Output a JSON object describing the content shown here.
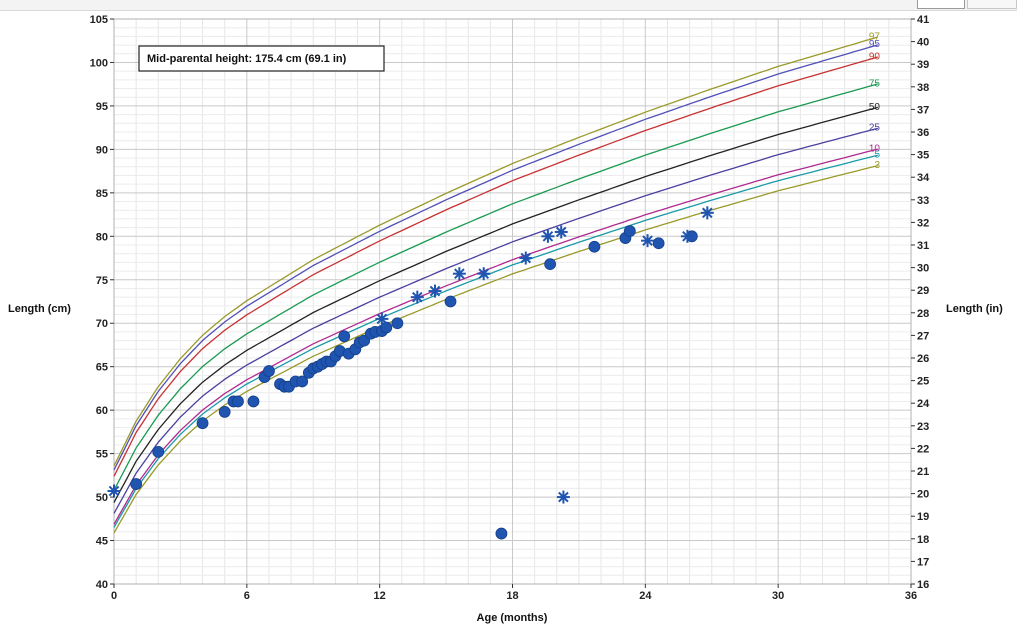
{
  "chart_data": {
    "type": "scatter",
    "note": "Mid-parental height: 175.4 cm (69.1 in)",
    "xlabel": "Age (months)",
    "ylabel_left": "Length (cm)",
    "ylabel_right": "Length (in)",
    "xlim": [
      0,
      36
    ],
    "ylim_cm": [
      40,
      105
    ],
    "ylim_in": [
      16,
      41
    ],
    "x_ticks": [
      "0",
      "6",
      "12",
      "18",
      "24",
      "30",
      "36"
    ],
    "y_ticks_cm": [
      "40",
      "45",
      "50",
      "55",
      "60",
      "65",
      "70",
      "75",
      "80",
      "85",
      "90",
      "95",
      "100",
      "105"
    ],
    "y_ticks_in": [
      "16",
      "17",
      "18",
      "19",
      "20",
      "21",
      "22",
      "23",
      "24",
      "25",
      "26",
      "27",
      "28",
      "29",
      "30",
      "31",
      "32",
      "33",
      "34",
      "35",
      "36",
      "37",
      "38",
      "39",
      "40",
      "41"
    ],
    "grid": true,
    "percentile_curves": [
      {
        "label": "97",
        "color": "#9a9a2a",
        "end_value": 103.0
      },
      {
        "label": "95",
        "color": "#5050b8",
        "end_value": 102.1
      },
      {
        "label": "90",
        "color": "#c83232",
        "end_value": 100.7
      },
      {
        "label": "75",
        "color": "#1a9a50",
        "end_value": 97.6
      },
      {
        "label": "50",
        "color": "#222222",
        "end_value": 94.9
      },
      {
        "label": "25",
        "color": "#4a40a0",
        "end_value": 92.5
      },
      {
        "label": "10",
        "color": "#b02a90",
        "end_value": 90.1
      },
      {
        "label": "5",
        "color": "#1a9aa8",
        "end_value": 89.4
      },
      {
        "label": "3",
        "color": "#9a9a2a",
        "end_value": 88.2
      }
    ],
    "point_color": "#1f55b0",
    "series": [
      {
        "marker": "circle",
        "points": [
          [
            1.0,
            51.5
          ],
          [
            2.0,
            55.2
          ],
          [
            4.0,
            58.5
          ],
          [
            5.0,
            59.8
          ],
          [
            5.4,
            61.0
          ],
          [
            5.6,
            61.0
          ],
          [
            6.3,
            61.0
          ],
          [
            6.8,
            63.8
          ],
          [
            7.0,
            64.5
          ],
          [
            7.5,
            63.0
          ],
          [
            7.7,
            62.7
          ],
          [
            7.9,
            62.7
          ],
          [
            8.2,
            63.3
          ],
          [
            8.5,
            63.3
          ],
          [
            8.8,
            64.3
          ],
          [
            9.0,
            64.8
          ],
          [
            9.2,
            65.0
          ],
          [
            9.4,
            65.3
          ],
          [
            9.6,
            65.6
          ],
          [
            9.8,
            65.6
          ],
          [
            10.0,
            66.2
          ],
          [
            10.2,
            66.8
          ],
          [
            10.4,
            68.5
          ],
          [
            10.6,
            66.5
          ],
          [
            10.9,
            67.0
          ],
          [
            11.1,
            67.8
          ],
          [
            11.3,
            68.0
          ],
          [
            11.6,
            68.8
          ],
          [
            11.8,
            69.0
          ],
          [
            12.1,
            69.1
          ],
          [
            12.3,
            69.5
          ],
          [
            12.8,
            70.0
          ],
          [
            15.2,
            72.5
          ],
          [
            17.5,
            45.8
          ],
          [
            19.7,
            76.8
          ],
          [
            21.7,
            78.8
          ],
          [
            23.1,
            79.8
          ],
          [
            23.3,
            80.6
          ],
          [
            24.6,
            79.2
          ],
          [
            26.1,
            80.0
          ]
        ]
      },
      {
        "marker": "asterisk",
        "points": [
          [
            0.0,
            50.7
          ],
          [
            12.1,
            70.5
          ],
          [
            13.7,
            73.0
          ],
          [
            14.5,
            73.7
          ],
          [
            15.6,
            75.7
          ],
          [
            16.7,
            75.7
          ],
          [
            18.6,
            77.5
          ],
          [
            19.6,
            80.0
          ],
          [
            20.2,
            80.5
          ],
          [
            20.3,
            50.0
          ],
          [
            24.1,
            79.5
          ],
          [
            25.9,
            80.0
          ],
          [
            26.8,
            82.7
          ]
        ]
      }
    ]
  }
}
